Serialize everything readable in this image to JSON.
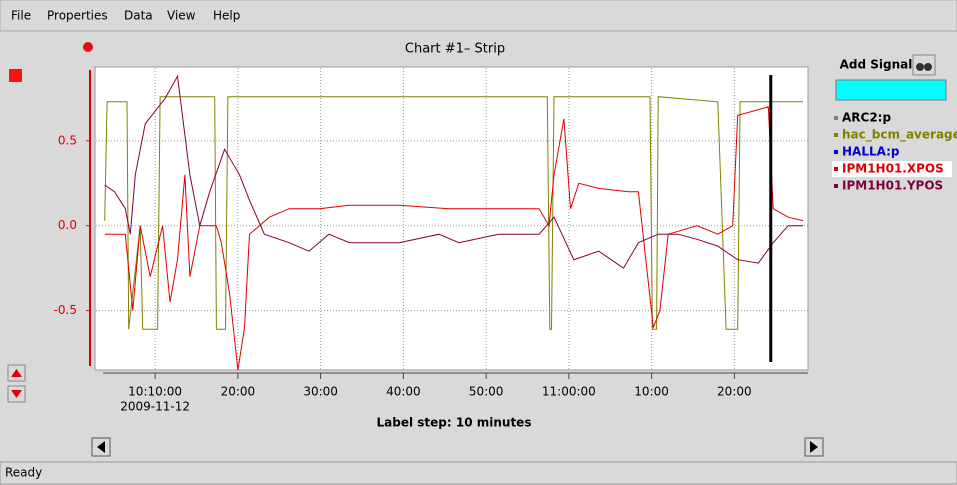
{
  "menu": [
    "File",
    "Properties",
    "Data",
    "View",
    "Help"
  ],
  "chart_data": {
    "type": "line",
    "title": "Chart #1– Strip",
    "x_date_label": "2009-11-12",
    "x_note": "Label step: 10 minutes",
    "xlim": [
      603.7,
      688.9
    ],
    "xticks": [
      {
        "value": 610,
        "label": "10:10:00"
      },
      {
        "value": 620,
        "label": "20:00"
      },
      {
        "value": 630,
        "label": "30:00"
      },
      {
        "value": 640,
        "label": "40:00"
      },
      {
        "value": 650,
        "label": "50:00"
      },
      {
        "value": 660,
        "label": "11:00:00"
      },
      {
        "value": 670,
        "label": "10:00"
      },
      {
        "value": 680,
        "label": "20:00"
      }
    ],
    "ylim": [
      -0.85,
      0.935
    ],
    "yticks": [
      {
        "value": 0.5,
        "label": "0.5"
      },
      {
        "value": 0,
        "label": "0.0"
      },
      {
        "value": -0.5,
        "label": "-0.5"
      }
    ],
    "grid": true,
    "cursor_x": 684.4,
    "series": [
      {
        "name": "ARC2:p",
        "color": "#7f7f7f",
        "x": [],
        "values": []
      },
      {
        "name": "hac_bcm_average",
        "color": "#808000",
        "x": [
          603.9,
          604.2,
          606.6,
          606.8,
          608.2,
          608.5,
          610.3,
          610.6,
          617.2,
          617.4,
          618.5,
          618.8,
          657.4,
          657.7,
          657.9,
          658.2,
          669.8,
          670.1,
          670.6,
          670.8,
          678.0,
          679.0,
          680.4,
          680.7,
          688.3
        ],
        "values": [
          0.03,
          0.73,
          0.73,
          -0.61,
          0.0,
          -0.61,
          -0.61,
          0.76,
          0.76,
          -0.61,
          -0.61,
          0.76,
          0.76,
          -0.61,
          -0.61,
          0.76,
          0.76,
          -0.61,
          -0.61,
          0.76,
          0.73,
          -0.61,
          -0.61,
          0.73,
          0.73
        ]
      },
      {
        "name": "HALLA:p",
        "color": "#0000cc",
        "x": [],
        "values": []
      },
      {
        "name": "IPM1H01.XPOS",
        "color": "#e00000",
        "x": [
          603.9,
          606.4,
          607.3,
          608.2,
          609.4,
          610.9,
          611.8,
          612.7,
          613.6,
          614.2,
          615.4,
          617.4,
          618.0,
          619.0,
          620.0,
          620.8,
          621.4,
          622.6,
          623.8,
          626.2,
          627.4,
          629.8,
          633.5,
          639.5,
          645.5,
          651.5,
          656.4,
          657.6,
          658.2,
          659.4,
          660.2,
          661.2,
          663.6,
          667.2,
          668.4,
          669.3,
          670.2,
          671.0,
          672.0,
          675.5,
          678.0,
          679.8,
          680.4,
          684.1,
          684.7,
          686.5,
          688.3
        ],
        "values": [
          -0.05,
          -0.05,
          -0.5,
          0.0,
          -0.3,
          0.0,
          -0.45,
          -0.2,
          0.3,
          -0.3,
          0.0,
          0.0,
          -0.1,
          -0.4,
          -0.85,
          -0.6,
          -0.05,
          0.0,
          0.05,
          0.1,
          0.1,
          0.1,
          0.12,
          0.12,
          0.1,
          0.1,
          0.1,
          0.0,
          0.3,
          0.63,
          0.1,
          0.25,
          0.22,
          0.2,
          0.2,
          -0.2,
          -0.6,
          -0.5,
          -0.05,
          0.0,
          -0.05,
          0.0,
          0.65,
          0.7,
          0.1,
          0.05,
          0.03
        ]
      },
      {
        "name": "IPM1H01.YPOS",
        "color": "#800040",
        "x": [
          603.9,
          605.1,
          606.4,
          607.0,
          607.6,
          608.8,
          611.2,
          612.7,
          614.2,
          615.4,
          616.6,
          618.4,
          620.2,
          621.4,
          623.2,
          626.2,
          628.6,
          631.0,
          633.5,
          639.5,
          644.3,
          646.7,
          651.5,
          656.4,
          658.2,
          660.6,
          663.6,
          666.6,
          668.4,
          670.8,
          673.2,
          675.5,
          678.0,
          680.4,
          682.9,
          684.7,
          686.5,
          688.3
        ],
        "values": [
          0.24,
          0.2,
          0.1,
          -0.05,
          0.3,
          0.6,
          0.75,
          0.88,
          0.3,
          0.0,
          0.2,
          0.45,
          0.3,
          0.15,
          -0.05,
          -0.1,
          -0.15,
          -0.05,
          -0.1,
          -0.1,
          -0.05,
          -0.1,
          -0.05,
          -0.05,
          0.05,
          -0.2,
          -0.15,
          -0.25,
          -0.1,
          -0.05,
          -0.05,
          -0.08,
          -0.12,
          -0.2,
          -0.22,
          -0.1,
          0.0,
          0.0
        ]
      }
    ]
  },
  "panel": {
    "add_signal": "Add Signal"
  },
  "status": "Ready"
}
